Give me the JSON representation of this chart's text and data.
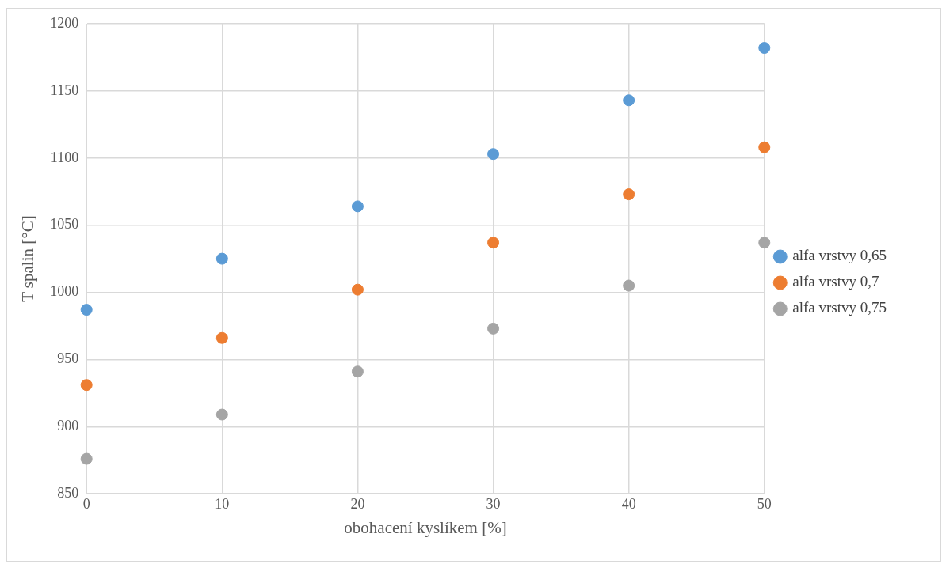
{
  "chart_data": {
    "type": "scatter",
    "xlabel": "obohacení kyslíkem [%]",
    "ylabel": "T spalin [°C]",
    "x": [
      0,
      10,
      20,
      30,
      40,
      50
    ],
    "series": [
      {
        "name": "alfa vrstvy 0,65",
        "color": "#5b9bd5",
        "values": [
          987,
          1025,
          1064,
          1103,
          1143,
          1182
        ]
      },
      {
        "name": "alfa vrstvy 0,7",
        "color": "#ed7d31",
        "values": [
          931,
          966,
          1002,
          1037,
          1073,
          1108
        ]
      },
      {
        "name": "alfa vrstvy 0,75",
        "color": "#a5a5a5",
        "values": [
          876,
          909,
          941,
          973,
          1005,
          1037
        ]
      }
    ],
    "xlim": [
      0,
      50
    ],
    "xticks": [
      0,
      10,
      20,
      30,
      40,
      50
    ],
    "ylim": [
      850,
      1200
    ],
    "yticks": [
      850,
      900,
      950,
      1000,
      1050,
      1100,
      1150,
      1200
    ],
    "grid": true,
    "legend": "right",
    "marker": "circle"
  }
}
